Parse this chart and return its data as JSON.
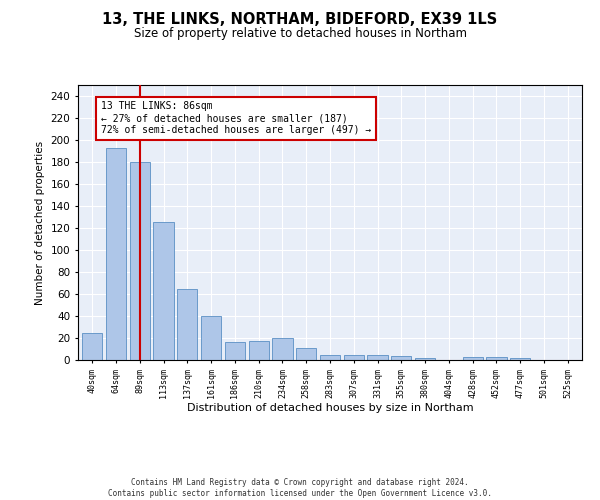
{
  "title": "13, THE LINKS, NORTHAM, BIDEFORD, EX39 1LS",
  "subtitle": "Size of property relative to detached houses in Northam",
  "xlabel": "Distribution of detached houses by size in Northam",
  "ylabel": "Number of detached properties",
  "categories": [
    "40sqm",
    "64sqm",
    "89sqm",
    "113sqm",
    "137sqm",
    "161sqm",
    "186sqm",
    "210sqm",
    "234sqm",
    "258sqm",
    "283sqm",
    "307sqm",
    "331sqm",
    "355sqm",
    "380sqm",
    "404sqm",
    "428sqm",
    "452sqm",
    "477sqm",
    "501sqm",
    "525sqm"
  ],
  "values": [
    25,
    193,
    180,
    125,
    65,
    40,
    16,
    17,
    20,
    11,
    5,
    5,
    5,
    4,
    2,
    0,
    3,
    3,
    2,
    0,
    0
  ],
  "bar_color": "#aec6e8",
  "bar_edgecolor": "#5a8fc4",
  "vline_x": 2.0,
  "vline_color": "#cc0000",
  "annotation_text": "13 THE LINKS: 86sqm\n← 27% of detached houses are smaller (187)\n72% of semi-detached houses are larger (497) →",
  "annotation_box_color": "#ffffff",
  "annotation_box_edgecolor": "#cc0000",
  "ylim": [
    0,
    250
  ],
  "yticks": [
    0,
    20,
    40,
    60,
    80,
    100,
    120,
    140,
    160,
    180,
    200,
    220,
    240
  ],
  "bg_color": "#e8eef8",
  "footer_line1": "Contains HM Land Registry data © Crown copyright and database right 2024.",
  "footer_line2": "Contains public sector information licensed under the Open Government Licence v3.0."
}
